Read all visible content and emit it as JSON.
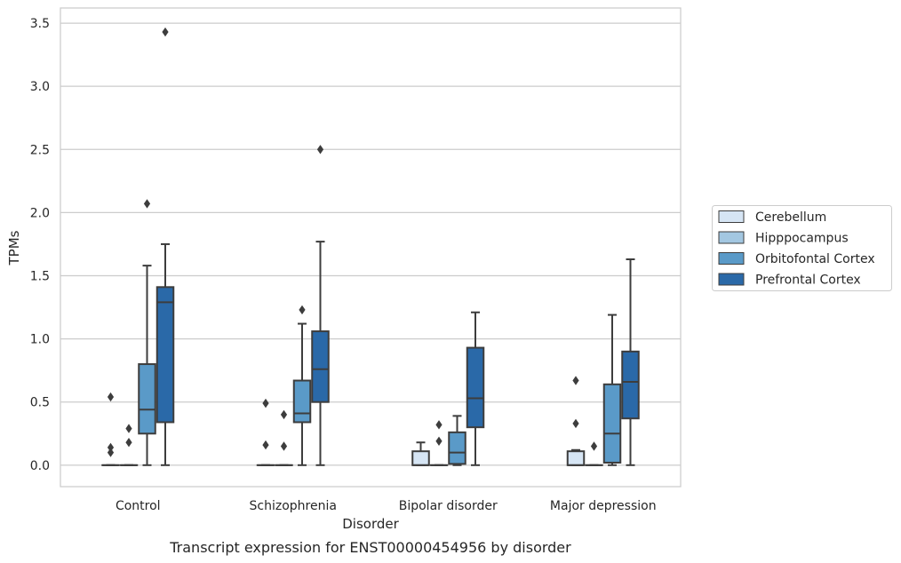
{
  "chart_data": {
    "type": "box",
    "xlabel": "Disorder",
    "ylabel": "TPMs",
    "caption": "Transcript expression for ENST00000454956 by disorder",
    "ylim": [
      -0.17,
      3.62
    ],
    "yticks": [
      "0.0",
      "0.5",
      "1.0",
      "1.5",
      "2.0",
      "2.5",
      "3.0",
      "3.5"
    ],
    "grid": "horizontal",
    "legend_position": "right",
    "categories": [
      "Control",
      "Schizophrenia",
      "Bipolar disorder",
      "Major depression"
    ],
    "series": [
      {
        "name": "Cerebellum",
        "color": "#d6e5f4",
        "boxes": [
          {
            "q1": 0,
            "median": 0,
            "q3": 0,
            "whislo": 0,
            "whishi": 0,
            "fliers": [
              0.54,
              0.14,
              0.1
            ]
          },
          {
            "q1": 0,
            "median": 0,
            "q3": 0,
            "whislo": 0,
            "whishi": 0,
            "fliers": [
              0.49,
              0.16
            ]
          },
          {
            "q1": 0,
            "median": 0,
            "q3": 0.11,
            "whislo": 0,
            "whishi": 0.18,
            "fliers": []
          },
          {
            "q1": 0,
            "median": 0,
            "q3": 0.11,
            "whislo": 0,
            "whishi": 0.12,
            "fliers": [
              0.67,
              0.33
            ]
          }
        ]
      },
      {
        "name": "Hipppocampus",
        "color": "#a3c7e1",
        "boxes": [
          {
            "q1": 0,
            "median": 0,
            "q3": 0,
            "whislo": 0,
            "whishi": 0,
            "fliers": [
              0.29,
              0.18
            ]
          },
          {
            "q1": 0,
            "median": 0,
            "q3": 0,
            "whislo": 0,
            "whishi": 0,
            "fliers": [
              0.4,
              0.15
            ]
          },
          {
            "q1": 0,
            "median": 0,
            "q3": 0,
            "whislo": 0,
            "whishi": 0,
            "fliers": [
              0.32,
              0.19
            ]
          },
          {
            "q1": 0,
            "median": 0,
            "q3": 0,
            "whislo": 0,
            "whishi": 0,
            "fliers": [
              0.15
            ]
          }
        ]
      },
      {
        "name": "Orbitofontal Cortex",
        "color": "#5a9ac8",
        "boxes": [
          {
            "q1": 0.25,
            "median": 0.44,
            "q3": 0.8,
            "whislo": 0,
            "whishi": 1.58,
            "fliers": [
              2.07
            ]
          },
          {
            "q1": 0.34,
            "median": 0.41,
            "q3": 0.67,
            "whislo": 0,
            "whishi": 1.12,
            "fliers": [
              1.23
            ]
          },
          {
            "q1": 0.01,
            "median": 0.1,
            "q3": 0.26,
            "whislo": 0,
            "whishi": 0.39,
            "fliers": []
          },
          {
            "q1": 0.02,
            "median": 0.25,
            "q3": 0.64,
            "whislo": 0,
            "whishi": 1.19,
            "fliers": []
          }
        ]
      },
      {
        "name": "Prefrontal Cortex",
        "color": "#2a69a8",
        "boxes": [
          {
            "q1": 0.34,
            "median": 1.29,
            "q3": 1.41,
            "whislo": 0,
            "whishi": 1.75,
            "fliers": [
              3.43
            ]
          },
          {
            "q1": 0.5,
            "median": 0.76,
            "q3": 1.06,
            "whislo": 0,
            "whishi": 1.77,
            "fliers": [
              2.5
            ]
          },
          {
            "q1": 0.3,
            "median": 0.53,
            "q3": 0.93,
            "whislo": 0,
            "whishi": 1.21,
            "fliers": []
          },
          {
            "q1": 0.37,
            "median": 0.66,
            "q3": 0.9,
            "whislo": 0,
            "whishi": 1.63,
            "fliers": []
          }
        ]
      }
    ]
  }
}
